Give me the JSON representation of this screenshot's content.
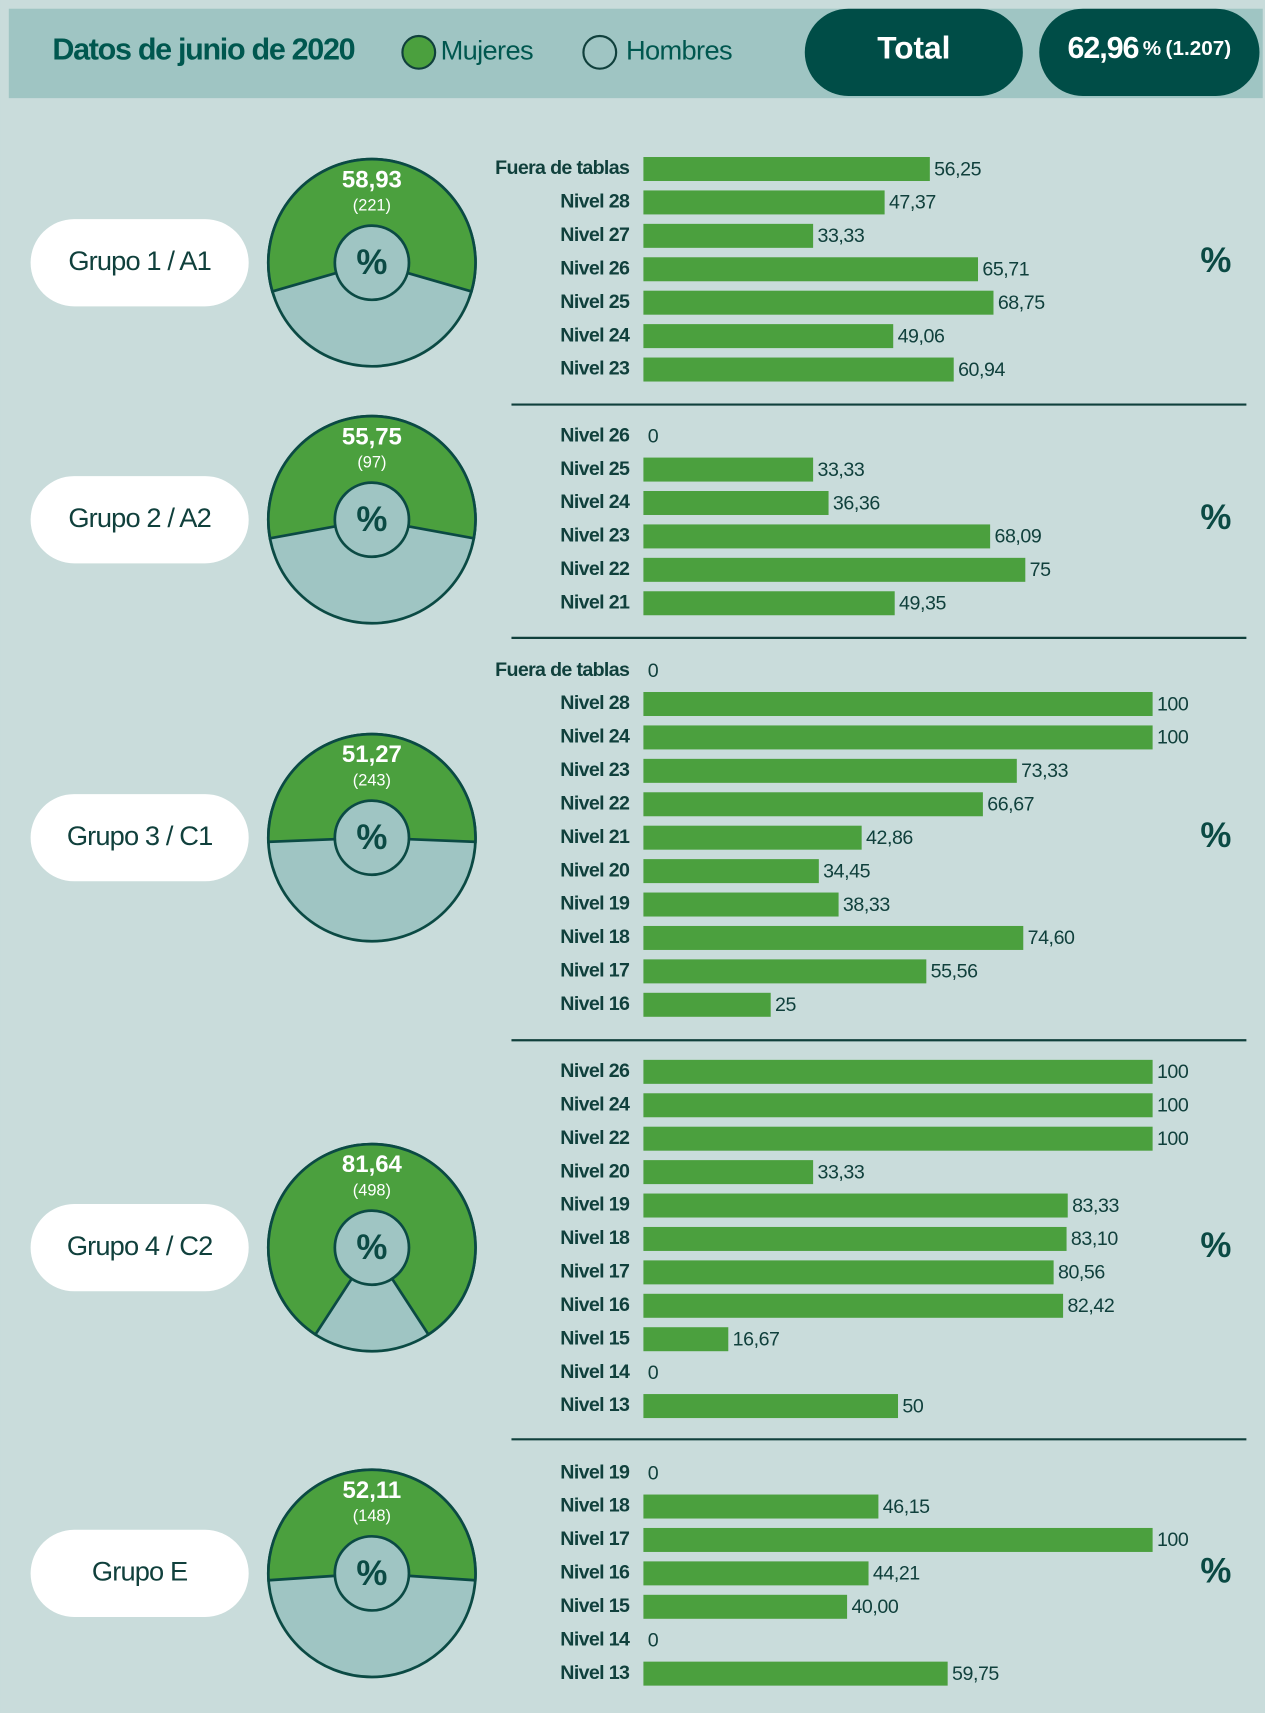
{
  "header": {
    "title": "Datos de junio de 2020",
    "legend": [
      {
        "name": "Mujeres",
        "color": "#4ba03e"
      },
      {
        "name": "Hombres",
        "color": "#9fc5c3"
      }
    ],
    "total_label": "Total",
    "total_value": 62.96,
    "total_value_label": "62,96",
    "unit": "%",
    "total_count": 1207,
    "total_count_label": "(1.207)"
  },
  "chart_data": [
    {
      "type": "bar",
      "title": "Grupo 1 / A1",
      "share": 58.93,
      "share_label": "58,93",
      "count": 221,
      "count_label": "(221)",
      "unit": "%",
      "categories": [
        "Fuera de tablas",
        "Nivel 28",
        "Nivel 27",
        "Nivel 26",
        "Nivel 25",
        "Nivel 24",
        "Nivel 23"
      ],
      "values": [
        56.25,
        47.37,
        33.33,
        65.71,
        68.75,
        49.06,
        60.94
      ],
      "value_labels": [
        "56,25",
        "47,37",
        "33,33",
        "65,71",
        "68,75",
        "49,06",
        "60,94"
      ],
      "xlim": [
        0,
        100
      ],
      "color": "#4ba03e"
    },
    {
      "type": "bar",
      "title": "Grupo 2 / A2",
      "share": 55.75,
      "share_label": "55,75",
      "count": 97,
      "count_label": "(97)",
      "unit": "%",
      "categories": [
        "Nivel 26",
        "Nivel 25",
        "Nivel 24",
        "Nivel 23",
        "Nivel 22",
        "Nivel 21"
      ],
      "values": [
        0,
        33.33,
        36.36,
        68.09,
        75,
        49.35
      ],
      "value_labels": [
        "0",
        "33,33",
        "36,36",
        "68,09",
        "75",
        "49,35"
      ],
      "xlim": [
        0,
        100
      ],
      "color": "#4ba03e"
    },
    {
      "type": "bar",
      "title": "Grupo 3 / C1",
      "share": 51.27,
      "share_label": "51,27",
      "count": 243,
      "count_label": "(243)",
      "unit": "%",
      "categories": [
        "Fuera de tablas",
        "Nivel 28",
        "Nivel 24",
        "Nivel 23",
        "Nivel 22",
        "Nivel 21",
        "Nivel 20",
        "Nivel 19",
        "Nivel 18",
        "Nivel 17",
        "Nivel 16"
      ],
      "values": [
        0,
        100,
        100,
        73.33,
        66.67,
        42.86,
        34.45,
        38.33,
        74.6,
        55.56,
        25
      ],
      "value_labels": [
        "0",
        "100",
        "100",
        "73,33",
        "66,67",
        "42,86",
        "34,45",
        "38,33",
        "74,60",
        "55,56",
        "25"
      ],
      "xlim": [
        0,
        100
      ],
      "color": "#4ba03e"
    },
    {
      "type": "bar",
      "title": "Grupo 4 / C2",
      "share": 81.64,
      "share_label": "81,64",
      "count": 498,
      "count_label": "(498)",
      "unit": "%",
      "categories": [
        "Nivel 26",
        "Nivel 24",
        "Nivel 22",
        "Nivel 20",
        "Nivel 19",
        "Nivel 18",
        "Nivel 17",
        "Nivel 16",
        "Nivel 15",
        "Nivel 14",
        "Nivel 13"
      ],
      "values": [
        100,
        100,
        100,
        33.33,
        83.33,
        83.1,
        80.56,
        82.42,
        16.67,
        0,
        50
      ],
      "value_labels": [
        "100",
        "100",
        "100",
        "33,33",
        "83,33",
        "83,10",
        "80,56",
        "82,42",
        "16,67",
        "0",
        "50"
      ],
      "xlim": [
        0,
        100
      ],
      "color": "#4ba03e"
    },
    {
      "type": "bar",
      "title": "Grupo E",
      "share": 52.11,
      "share_label": "52,11",
      "count": 148,
      "count_label": "(148)",
      "unit": "%",
      "categories": [
        "Nivel 19",
        "Nivel 18",
        "Nivel 17",
        "Nivel 16",
        "Nivel 15",
        "Nivel 14",
        "Nivel 13"
      ],
      "values": [
        0,
        46.15,
        100,
        44.21,
        40,
        0,
        59.75
      ],
      "value_labels": [
        "0",
        "46,15",
        "100",
        "44,21",
        "40,00",
        "0",
        "59,75"
      ],
      "xlim": [
        0,
        100
      ],
      "color": "#4ba03e"
    }
  ]
}
